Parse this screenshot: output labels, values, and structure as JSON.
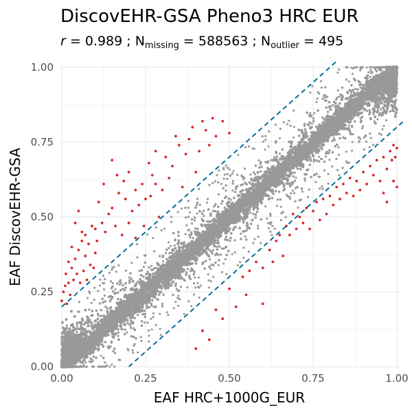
{
  "chart_data": {
    "type": "scatter",
    "title": "DiscovEHR-GSA Pheno3 HRC EUR",
    "subtitle": {
      "r_symbol": "r",
      "r_value": "0.989",
      "n_symbol": "N",
      "missing_sub": "missing",
      "missing_value": "588563",
      "outlier_sub": "outlier",
      "outlier_value": "495"
    },
    "xlabel": "EAF HRC+1000G_EUR",
    "ylabel": "EAF DiscovEHR-GSA",
    "xlim": [
      0,
      1
    ],
    "ylim": [
      0,
      1
    ],
    "x_ticks": [
      "0.00",
      "0.25",
      "0.50",
      "0.75",
      "1.00"
    ],
    "y_ticks": [
      "0.00",
      "0.25",
      "0.50",
      "0.75",
      "1.00"
    ],
    "grid": true,
    "legend": "none",
    "reference_lines": [
      {
        "intercept": 0.2,
        "slope": 1,
        "style": "dashed"
      },
      {
        "intercept": -0.2,
        "slope": 1,
        "style": "dashed"
      }
    ],
    "colors": {
      "points": "#999999",
      "outliers": "#d62728",
      "reference_lines": "#006e96",
      "grid": "#ebebeb"
    },
    "series": [
      {
        "role": "outliers",
        "points": [
          [
            0.0,
            0.22
          ],
          [
            0.005,
            0.25
          ],
          [
            0.01,
            0.27
          ],
          [
            0.012,
            0.31
          ],
          [
            0.015,
            0.21
          ],
          [
            0.02,
            0.28
          ],
          [
            0.02,
            0.35
          ],
          [
            0.025,
            0.24
          ],
          [
            0.03,
            0.33
          ],
          [
            0.03,
            0.4
          ],
          [
            0.035,
            0.29
          ],
          [
            0.04,
            0.36
          ],
          [
            0.04,
            0.48
          ],
          [
            0.045,
            0.31
          ],
          [
            0.05,
            0.39
          ],
          [
            0.05,
            0.52
          ],
          [
            0.055,
            0.28
          ],
          [
            0.06,
            0.42
          ],
          [
            0.06,
            0.45
          ],
          [
            0.065,
            0.32
          ],
          [
            0.07,
            0.37
          ],
          [
            0.07,
            0.44
          ],
          [
            0.075,
            0.29
          ],
          [
            0.08,
            0.41
          ],
          [
            0.085,
            0.34
          ],
          [
            0.09,
            0.47
          ],
          [
            0.095,
            0.33
          ],
          [
            0.1,
            0.46
          ],
          [
            0.1,
            0.38
          ],
          [
            0.105,
            0.42
          ],
          [
            0.11,
            0.55
          ],
          [
            0.12,
            0.48
          ],
          [
            0.125,
            0.61
          ],
          [
            0.13,
            0.45
          ],
          [
            0.14,
            0.51
          ],
          [
            0.15,
            0.69
          ],
          [
            0.15,
            0.53
          ],
          [
            0.16,
            0.47
          ],
          [
            0.165,
            0.64
          ],
          [
            0.17,
            0.58
          ],
          [
            0.18,
            0.44
          ],
          [
            0.185,
            0.62
          ],
          [
            0.19,
            0.56
          ],
          [
            0.2,
            0.48
          ],
          [
            0.2,
            0.65
          ],
          [
            0.21,
            0.52
          ],
          [
            0.22,
            0.59
          ],
          [
            0.22,
            0.43
          ],
          [
            0.23,
            0.54
          ],
          [
            0.24,
            0.61
          ],
          [
            0.245,
            0.47
          ],
          [
            0.25,
            0.56
          ],
          [
            0.26,
            0.68
          ],
          [
            0.265,
            0.57
          ],
          [
            0.27,
            0.64
          ],
          [
            0.28,
            0.61
          ],
          [
            0.28,
            0.72
          ],
          [
            0.29,
            0.5
          ],
          [
            0.3,
            0.59
          ],
          [
            0.31,
            0.7
          ],
          [
            0.32,
            0.63
          ],
          [
            0.33,
            0.67
          ],
          [
            0.34,
            0.77
          ],
          [
            0.35,
            0.74
          ],
          [
            0.36,
            0.6
          ],
          [
            0.37,
            0.71
          ],
          [
            0.38,
            0.76
          ],
          [
            0.39,
            0.8
          ],
          [
            0.4,
            0.65
          ],
          [
            0.41,
            0.72
          ],
          [
            0.42,
            0.82
          ],
          [
            0.43,
            0.79
          ],
          [
            0.44,
            0.74
          ],
          [
            0.45,
            0.83
          ],
          [
            0.46,
            0.77
          ],
          [
            0.48,
            0.82
          ],
          [
            0.5,
            0.78
          ],
          [
            0.4,
            0.06
          ],
          [
            0.42,
            0.12
          ],
          [
            0.44,
            0.09
          ],
          [
            0.46,
            0.19
          ],
          [
            0.48,
            0.16
          ],
          [
            0.5,
            0.26
          ],
          [
            0.52,
            0.2
          ],
          [
            0.54,
            0.3
          ],
          [
            0.55,
            0.24
          ],
          [
            0.56,
            0.32
          ],
          [
            0.58,
            0.35
          ],
          [
            0.6,
            0.33
          ],
          [
            0.6,
            0.21
          ],
          [
            0.62,
            0.39
          ],
          [
            0.63,
            0.35
          ],
          [
            0.64,
            0.42
          ],
          [
            0.65,
            0.44
          ],
          [
            0.66,
            0.37
          ],
          [
            0.67,
            0.47
          ],
          [
            0.68,
            0.44
          ],
          [
            0.69,
            0.51
          ],
          [
            0.7,
            0.46
          ],
          [
            0.71,
            0.5
          ],
          [
            0.72,
            0.48
          ],
          [
            0.73,
            0.53
          ],
          [
            0.74,
            0.46
          ],
          [
            0.75,
            0.52
          ],
          [
            0.76,
            0.55
          ],
          [
            0.77,
            0.49
          ],
          [
            0.78,
            0.56
          ],
          [
            0.79,
            0.51
          ],
          [
            0.8,
            0.57
          ],
          [
            0.81,
            0.54
          ],
          [
            0.82,
            0.6
          ],
          [
            0.83,
            0.56
          ],
          [
            0.84,
            0.61
          ],
          [
            0.85,
            0.58
          ],
          [
            0.86,
            0.63
          ],
          [
            0.87,
            0.57
          ],
          [
            0.88,
            0.62
          ],
          [
            0.89,
            0.59
          ],
          [
            0.9,
            0.65
          ],
          [
            0.91,
            0.61
          ],
          [
            0.92,
            0.67
          ],
          [
            0.93,
            0.64
          ],
          [
            0.94,
            0.69
          ],
          [
            0.95,
            0.62
          ],
          [
            0.96,
            0.7
          ],
          [
            0.97,
            0.66
          ],
          [
            0.98,
            0.72
          ],
          [
            0.985,
            0.69
          ],
          [
            0.99,
            0.74
          ],
          [
            0.995,
            0.7
          ],
          [
            1.0,
            0.73
          ],
          [
            0.97,
            0.55
          ],
          [
            0.99,
            0.62
          ],
          [
            0.96,
            0.58
          ],
          [
            1.0,
            0.6
          ]
        ]
      }
    ]
  }
}
